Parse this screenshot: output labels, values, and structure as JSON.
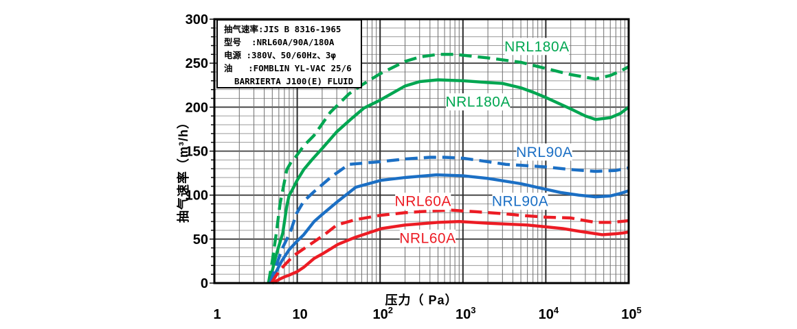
{
  "chart_data": {
    "type": "line",
    "title": "",
    "xlabel": "压力（ Pa）",
    "ylabel": "抽气速率（m³/h）",
    "x_scale": "log",
    "xlim": [
      1,
      100000
    ],
    "ylim": [
      0,
      300
    ],
    "y_major_step": 50,
    "y_minor_step": 10,
    "grid": "on",
    "x_ticks": [
      {
        "base": "1",
        "exp": ""
      },
      {
        "base": "10",
        "exp": ""
      },
      {
        "base": "10",
        "exp": "2"
      },
      {
        "base": "10",
        "exp": "3"
      },
      {
        "base": "10",
        "exp": "4"
      },
      {
        "base": "10",
        "exp": "5"
      }
    ],
    "y_ticks": [
      0,
      50,
      100,
      150,
      200,
      250,
      300
    ],
    "series": [
      {
        "name": "NRL180A (dashed)",
        "color": "#00a651",
        "dash": true,
        "points": [
          [
            4.5,
            0
          ],
          [
            5,
            25
          ],
          [
            5.6,
            57
          ],
          [
            6.2,
            90
          ],
          [
            7,
            115
          ],
          [
            7.5,
            129
          ],
          [
            8.5,
            138
          ],
          [
            9.5,
            143
          ],
          [
            12,
            156
          ],
          [
            16,
            168
          ],
          [
            25,
            194
          ],
          [
            42,
            215
          ],
          [
            62,
            226
          ],
          [
            100,
            238
          ],
          [
            200,
            252
          ],
          [
            300,
            257
          ],
          [
            500,
            260
          ],
          [
            800,
            260
          ],
          [
            1000,
            259
          ],
          [
            2000,
            256
          ],
          [
            5000,
            251
          ],
          [
            10000,
            244
          ],
          [
            20000,
            237
          ],
          [
            40000,
            232
          ],
          [
            60000,
            236
          ],
          [
            80000,
            241
          ],
          [
            100000,
            246
          ]
        ]
      },
      {
        "name": "NRL180A (solid)",
        "color": "#00a651",
        "dash": false,
        "points": [
          [
            4.6,
            0
          ],
          [
            5,
            14
          ],
          [
            5.5,
            30
          ],
          [
            6,
            42
          ],
          [
            6.7,
            57
          ],
          [
            7.5,
            88
          ],
          [
            8,
            100
          ],
          [
            8.5,
            104
          ],
          [
            10,
            117
          ],
          [
            12,
            129
          ],
          [
            15,
            140
          ],
          [
            20,
            153
          ],
          [
            30,
            172
          ],
          [
            44,
            186
          ],
          [
            64,
            199
          ],
          [
            100,
            208
          ],
          [
            200,
            224
          ],
          [
            300,
            229
          ],
          [
            500,
            231
          ],
          [
            1000,
            230
          ],
          [
            2000,
            228
          ],
          [
            3000,
            227
          ],
          [
            5000,
            222
          ],
          [
            7000,
            217
          ],
          [
            10000,
            211
          ],
          [
            20000,
            198
          ],
          [
            30000,
            190
          ],
          [
            40000,
            186
          ],
          [
            60000,
            188
          ],
          [
            80000,
            193
          ],
          [
            100000,
            200
          ]
        ]
      },
      {
        "name": "NRL90A (dashed)",
        "color": "#1b6fc4",
        "dash": true,
        "points": [
          [
            4.7,
            0
          ],
          [
            5.5,
            18
          ],
          [
            6.5,
            38
          ],
          [
            7.5,
            50
          ],
          [
            8.2,
            57
          ],
          [
            9.8,
            79
          ],
          [
            12,
            93
          ],
          [
            16,
            104
          ],
          [
            26,
            121
          ],
          [
            42,
            135
          ],
          [
            100,
            138
          ],
          [
            200,
            141
          ],
          [
            400,
            143
          ],
          [
            600,
            143
          ],
          [
            1000,
            142
          ],
          [
            2000,
            138
          ],
          [
            3300,
            135
          ],
          [
            7000,
            133
          ],
          [
            10000,
            132
          ],
          [
            20000,
            129
          ],
          [
            40000,
            127
          ],
          [
            70000,
            128
          ],
          [
            100000,
            131
          ]
        ]
      },
      {
        "name": "NRL90A (solid)",
        "color": "#1b6fc4",
        "dash": false,
        "points": [
          [
            4.8,
            0
          ],
          [
            5.5,
            12
          ],
          [
            6.5,
            25
          ],
          [
            8,
            38
          ],
          [
            9.8,
            47
          ],
          [
            12,
            55
          ],
          [
            16,
            70
          ],
          [
            20,
            78
          ],
          [
            31,
            93
          ],
          [
            51,
            109
          ],
          [
            104,
            117
          ],
          [
            200,
            120
          ],
          [
            480,
            123
          ],
          [
            1000,
            122
          ],
          [
            2000,
            119
          ],
          [
            5000,
            113
          ],
          [
            8600,
            108
          ],
          [
            15000,
            103
          ],
          [
            25000,
            100
          ],
          [
            40000,
            98
          ],
          [
            60000,
            99
          ],
          [
            80000,
            102
          ],
          [
            100000,
            105
          ]
        ]
      },
      {
        "name": "NRL60A (dashed)",
        "color": "#ec1c24",
        "dash": true,
        "points": [
          [
            4.9,
            0
          ],
          [
            5.5,
            8
          ],
          [
            6.5,
            17
          ],
          [
            8,
            26
          ],
          [
            9,
            31
          ],
          [
            12,
            39
          ],
          [
            16,
            47
          ],
          [
            22,
            56
          ],
          [
            30,
            66
          ],
          [
            50,
            72
          ],
          [
            100,
            77
          ],
          [
            200,
            80
          ],
          [
            400,
            82
          ],
          [
            700,
            83
          ],
          [
            1500,
            81
          ],
          [
            3000,
            79
          ],
          [
            5000,
            77
          ],
          [
            10000,
            75
          ],
          [
            20000,
            74
          ],
          [
            30000,
            71
          ],
          [
            40000,
            69
          ],
          [
            60000,
            69
          ],
          [
            80000,
            70
          ],
          [
            100000,
            71
          ]
        ]
      },
      {
        "name": "NRL60A (solid)",
        "color": "#ec1c24",
        "dash": false,
        "points": [
          [
            5,
            0
          ],
          [
            6,
            4
          ],
          [
            7,
            7
          ],
          [
            8,
            9
          ],
          [
            10,
            13
          ],
          [
            12,
            18
          ],
          [
            16,
            28
          ],
          [
            20,
            33
          ],
          [
            31,
            44
          ],
          [
            50,
            52
          ],
          [
            104,
            62
          ],
          [
            200,
            66
          ],
          [
            500,
            69
          ],
          [
            900,
            70
          ],
          [
            2000,
            68
          ],
          [
            6000,
            66
          ],
          [
            10000,
            64
          ],
          [
            16000,
            62
          ],
          [
            25000,
            59
          ],
          [
            48000,
            55
          ],
          [
            70000,
            56
          ],
          [
            85000,
            57
          ],
          [
            100000,
            58
          ]
        ]
      }
    ],
    "curve_labels": [
      {
        "text": "NRL180A",
        "color": "#00a651",
        "pa": 7800,
        "value": 269
      },
      {
        "text": "NRL180A",
        "color": "#00a651",
        "pa": 1520,
        "value": 206
      },
      {
        "text": "NRL90A",
        "color": "#1b6fc4",
        "pa": 9600,
        "value": 149
      },
      {
        "text": "NRL60A",
        "color": "#ec1c24",
        "pa": 330,
        "value": 93
      },
      {
        "text": "NRL90A",
        "color": "#1b6fc4",
        "pa": 4900,
        "value": 93
      },
      {
        "text": "NRL60A",
        "color": "#ec1c24",
        "pa": 375,
        "value": 51
      }
    ]
  },
  "legend": {
    "lines": [
      "抽气速率:JIS B 8316-1965",
      "型号  :NRL60A/90A/180A",
      "电源 :380V、50/60Hz、3φ",
      "油   :FOMBLIN YL-VAC 25/6",
      "  BARRIERTA J100(E) FLUID"
    ]
  }
}
